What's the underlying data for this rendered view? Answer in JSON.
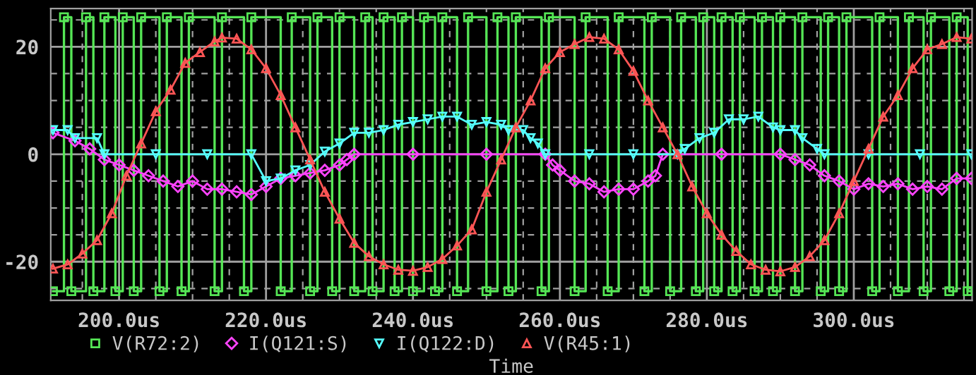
{
  "chart_data": {
    "type": "line",
    "xlabel": "Time",
    "xlim": [
      190.7,
      316.1
    ],
    "ylim": [
      -27.2,
      27.1
    ],
    "xticks": [
      {
        "value": 195,
        "label": null
      },
      {
        "value": 200,
        "label": "200.0us"
      },
      {
        "value": 205,
        "label": null
      },
      {
        "value": 210,
        "label": null
      },
      {
        "value": 215,
        "label": null
      },
      {
        "value": 220,
        "label": "220.0us"
      },
      {
        "value": 225,
        "label": null
      },
      {
        "value": 230,
        "label": null
      },
      {
        "value": 235,
        "label": null
      },
      {
        "value": 240,
        "label": "240.0us"
      },
      {
        "value": 245,
        "label": null
      },
      {
        "value": 250,
        "label": null
      },
      {
        "value": 255,
        "label": null
      },
      {
        "value": 260,
        "label": "260.0us"
      },
      {
        "value": 265,
        "label": null
      },
      {
        "value": 270,
        "label": null
      },
      {
        "value": 275,
        "label": null
      },
      {
        "value": 280,
        "label": "280.0us"
      },
      {
        "value": 285,
        "label": null
      },
      {
        "value": 290,
        "label": null
      },
      {
        "value": 295,
        "label": null
      },
      {
        "value": 300,
        "label": "300.0us"
      },
      {
        "value": 305,
        "label": null
      },
      {
        "value": 310,
        "label": null
      },
      {
        "value": 315,
        "label": null
      }
    ],
    "yticks": [
      {
        "value": -25,
        "label": null
      },
      -20,
      {
        "value": -15,
        "label": null
      },
      {
        "value": -10,
        "label": null
      },
      {
        "value": -5,
        "label": null
      },
      0,
      {
        "value": 5,
        "label": null
      },
      {
        "value": 10,
        "label": null
      },
      {
        "value": 15,
        "label": null
      },
      20,
      {
        "value": 25,
        "label": null
      }
    ],
    "grid": true,
    "legend": "bottom",
    "series": [
      {
        "name": "V(R72:2)",
        "type": "step",
        "color": "#55e655",
        "marker": "square",
        "x": [
          191,
          192.5,
          193.5,
          195.5,
          196.5,
          198,
          199.5,
          200.5,
          202,
          203,
          205.5,
          206.5,
          208.5,
          209.5,
          213,
          214,
          217,
          218,
          222,
          223.5,
          226,
          227,
          229,
          230,
          232,
          233.5,
          234.5,
          236,
          237.5,
          238.5,
          240,
          241.5,
          243,
          244,
          246,
          247.5,
          250,
          251.5,
          253,
          254,
          257.5,
          258.5,
          262,
          263.5,
          266.5,
          268,
          271.5,
          272.5,
          275,
          276.5,
          278.5,
          279.5,
          281,
          282,
          283.5,
          284.5,
          286.5,
          287.5,
          289,
          290,
          292,
          293,
          295.5,
          296.5,
          298,
          299,
          302.5,
          303.5,
          306,
          307.5,
          309.5,
          310.5,
          313,
          314,
          315.5,
          316
        ],
        "values": [
          -25.5,
          25.5,
          -25.5,
          25.5,
          -25.5,
          25.5,
          -25.5,
          25.5,
          -25.5,
          25.5,
          -25.5,
          25.5,
          -25.5,
          25.5,
          -25.5,
          25.5,
          -25.5,
          25.5,
          -25.5,
          25.5,
          -25.5,
          25.5,
          -25.5,
          25.5,
          -25.5,
          25.5,
          -25.5,
          25.5,
          -25.5,
          25.5,
          -25.5,
          25.5,
          -25.5,
          25.5,
          -25.5,
          25.5,
          -25.5,
          25.5,
          -25.5,
          25.5,
          -25.5,
          25.5,
          -25.5,
          25.5,
          -25.5,
          25.5,
          -25.5,
          25.5,
          -25.5,
          25.5,
          -25.5,
          25.5,
          -25.5,
          25.5,
          -25.5,
          25.5,
          -25.5,
          25.5,
          -25.5,
          25.5,
          -25.5,
          25.5,
          -25.5,
          25.5,
          -25.5,
          25.5,
          -25.5,
          25.5,
          -25.5,
          25.5,
          -25.5,
          25.5,
          -25.5,
          25.5,
          -25.5,
          -25.5
        ]
      },
      {
        "name": "I(Q121:S)",
        "type": "line",
        "color": "#ff44ff",
        "marker": "diamond",
        "x": [
          191,
          194,
          196,
          198,
          200,
          202,
          204,
          206,
          208,
          210,
          212,
          214,
          216,
          218,
          220,
          222,
          224,
          226,
          228,
          230,
          231,
          232,
          240,
          250,
          258,
          259,
          260,
          262,
          264,
          266,
          268,
          270,
          272,
          273,
          274,
          282,
          290,
          292,
          294,
          296,
          298,
          300,
          302,
          304,
          306,
          308,
          310,
          312,
          314,
          316
        ],
        "values": [
          4,
          2.5,
          1,
          -1,
          -2,
          -3,
          -4,
          -5,
          -6,
          -5,
          -6.5,
          -6.5,
          -7,
          -7.5,
          -6,
          -4.5,
          -4,
          -3.5,
          -3,
          -2,
          -1,
          0,
          0,
          0,
          0,
          -2,
          -3,
          -5,
          -5.5,
          -7,
          -6.5,
          -6.5,
          -5,
          -4,
          0,
          0,
          0,
          -1,
          -2,
          -4,
          -5,
          -6.5,
          -5.5,
          -6,
          -5.5,
          -6.5,
          -6,
          -6.5,
          -4.5,
          -4.5
        ]
      },
      {
        "name": "I(Q122:D)",
        "type": "line",
        "color": "#55ffff",
        "marker": "triangle_down",
        "x": [
          191,
          193,
          194,
          197,
          198,
          205,
          212,
          218,
          220,
          222,
          224,
          226,
          228,
          230,
          232,
          234,
          236,
          238,
          240,
          242,
          244,
          246,
          248,
          250,
          252,
          253,
          255,
          256,
          257,
          258,
          264,
          270,
          276,
          277,
          279,
          281,
          283,
          285,
          287,
          289,
          290,
          292,
          293,
          295,
          296,
          302,
          309,
          316
        ],
        "values": [
          4.5,
          4.5,
          3,
          3,
          0,
          0,
          0,
          0,
          -5,
          -4.5,
          -3,
          -2,
          0.5,
          2,
          4,
          4,
          4.5,
          5.5,
          6,
          6.5,
          7,
          7,
          5.5,
          6,
          5.5,
          4.5,
          4.5,
          3,
          2,
          0,
          0,
          0,
          0,
          1,
          3,
          4,
          6.5,
          6.5,
          7,
          5,
          4.5,
          4.5,
          3,
          1,
          0,
          0,
          0,
          0
        ]
      },
      {
        "name": "V(R45:1)",
        "type": "line",
        "color": "#ff5555",
        "marker": "triangle",
        "x": [
          191,
          193,
          195,
          197,
          199,
          201,
          203,
          205,
          207,
          209,
          211,
          213,
          214,
          216,
          218,
          220,
          222,
          224,
          226,
          228,
          230,
          232,
          234,
          236,
          238,
          240,
          242,
          244,
          246,
          248,
          250,
          252,
          254,
          256,
          258,
          260,
          262,
          264,
          266,
          268,
          270,
          272,
          274,
          276,
          278,
          280,
          282,
          284,
          286,
          288,
          290,
          292,
          294,
          296,
          298,
          300,
          302,
          304,
          306,
          308,
          310,
          312,
          314,
          316
        ],
        "values": [
          -21.3,
          -20.5,
          -18.5,
          -16,
          -11,
          -4,
          2,
          8,
          12,
          17,
          19,
          21,
          21.7,
          21.5,
          19.5,
          16,
          11,
          5,
          -1,
          -7,
          -12,
          -16.5,
          -19,
          -20.5,
          -21.5,
          -21.7,
          -21,
          -19.5,
          -17,
          -14,
          -7,
          -1,
          5,
          10,
          16,
          19,
          20.5,
          21.8,
          21.5,
          19.5,
          15.5,
          10,
          5,
          0,
          -6,
          -11,
          -15,
          -18,
          -20.5,
          -21.5,
          -21.8,
          -21,
          -19,
          -16,
          -11,
          -5,
          1,
          7,
          11,
          16,
          19.5,
          20.5,
          21.8,
          21.5
        ]
      }
    ]
  }
}
